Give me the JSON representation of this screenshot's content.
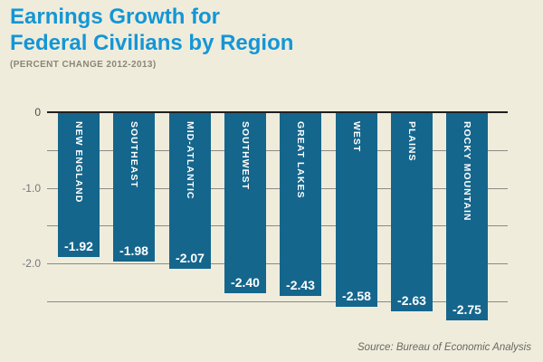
{
  "header": {
    "title_line1": "Earnings Growth for",
    "title_line2": "Federal Civilians by Region",
    "subtitle": "(PERCENT CHANGE 2012-2013)"
  },
  "footer": {
    "source": "Source: Bureau of Economic Analysis"
  },
  "colors": {
    "background_cream": "#efecdc",
    "title_blue": "#1496d5",
    "bar_teal": "#15668c",
    "grid_gray": "#8b8b85",
    "axis_black": "#1f1f1f",
    "value_text_white": "#ffffff"
  },
  "chart_data": {
    "type": "bar",
    "orientation": "vertical",
    "title": "Earnings Growth for Federal Civilians by Region",
    "subtitle": "(PERCENT CHANGE 2012-2013)",
    "xlabel": "",
    "ylabel": "",
    "categories": [
      "NEW ENGLAND",
      "SOUTHEAST",
      "MID-ATLANTIC",
      "SOUTHWEST",
      "GREAT LAKES",
      "WEST",
      "PLAINS",
      "ROCKY MOUNTAIN"
    ],
    "values": [
      -1.92,
      -1.98,
      -2.07,
      -2.4,
      -2.43,
      -2.58,
      -2.63,
      -2.75
    ],
    "value_labels": [
      "-1.92",
      "-1.98",
      "-2.07",
      "-2.40",
      "-2.43",
      "-2.58",
      "-2.63",
      "-2.75"
    ],
    "ylim": [
      -3.05,
      0
    ],
    "yticks": [
      {
        "label": "0",
        "value": 0
      },
      {
        "label": "-1.0",
        "value": -1
      },
      {
        "label": "-2.0",
        "value": -2
      }
    ],
    "gridline_values": [
      -0.5,
      -1,
      -1.5,
      -2,
      -2.5
    ],
    "grid": true,
    "legend": false,
    "value_labels_position": "inside-bottom",
    "category_labels_position": "inside-top-vertical",
    "source": "Source: Bureau of Economic Analysis"
  }
}
